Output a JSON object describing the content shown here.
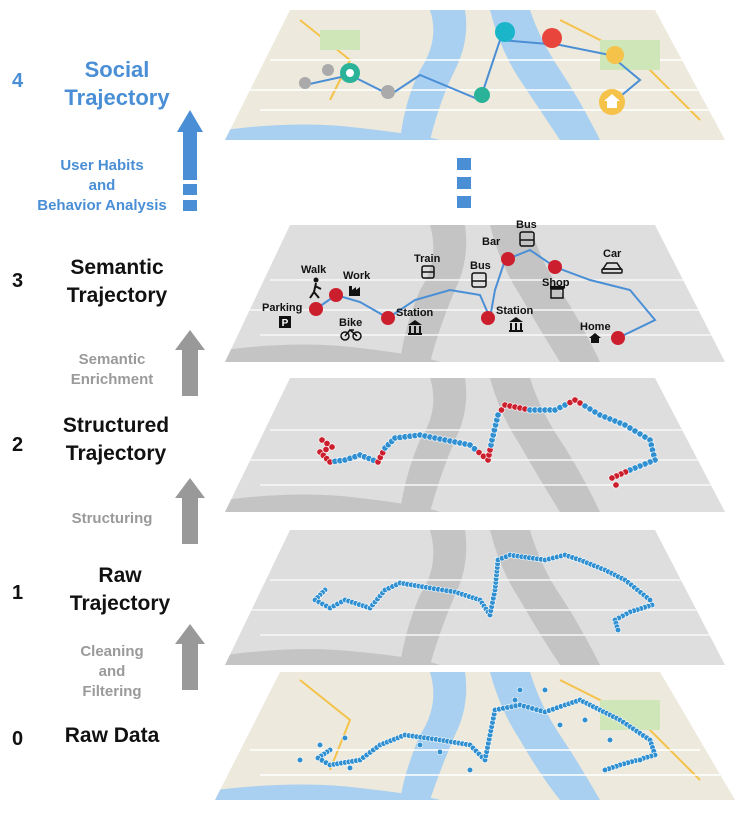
{
  "levels": [
    {
      "num": "4",
      "title_line1": "Social",
      "title_line2": "Trajectory"
    },
    {
      "num": "3",
      "title_line1": "Semantic",
      "title_line2": "Trajectory"
    },
    {
      "num": "2",
      "title_line1": "Structured",
      "title_line2": "Trajectory"
    },
    {
      "num": "1",
      "title_line1": "Raw",
      "title_line2": "Trajectory"
    },
    {
      "num": "0",
      "title_line1": "Raw Data"
    }
  ],
  "steps": {
    "social": [
      "User Habits",
      "and",
      "Behavior Analysis"
    ],
    "semantic": [
      "Semantic",
      "Enrichment"
    ],
    "structuring": [
      "Structuring"
    ],
    "cleaning": [
      "Cleaning",
      "and",
      "Filtering"
    ]
  },
  "semantic_labels": {
    "walk": "Walk",
    "work": "Work",
    "parking": "Parking",
    "bike": "Bike",
    "station1": "Station",
    "train": "Train",
    "bar": "Bar",
    "bus_top": "Bus",
    "bus": "Bus",
    "station2": "Station",
    "shop": "Shop",
    "car": "Car",
    "home": "Home"
  },
  "colors": {
    "social_blue": "#4a8fd6",
    "gray_arrow": "#999999",
    "point_blue": "#2f8fd0",
    "stop_red": "#cc1f2e",
    "route_blue": "#4a8fd6"
  }
}
